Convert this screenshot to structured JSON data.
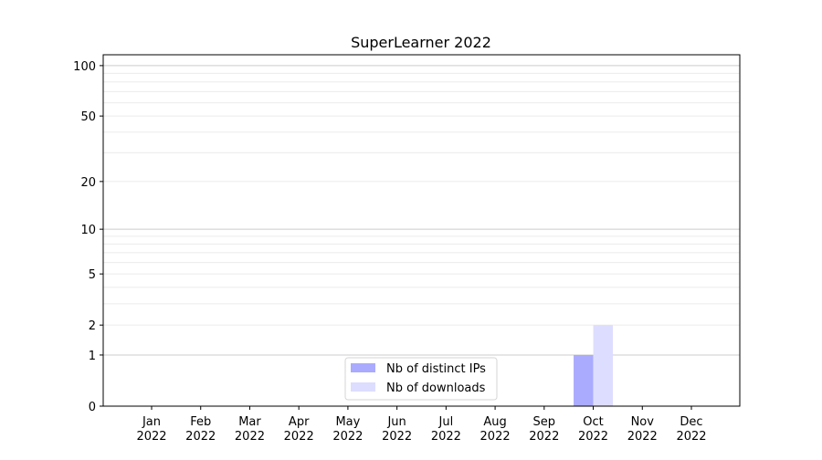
{
  "chart_data": {
    "type": "bar",
    "title": "SuperLearner 2022",
    "xlabel": "",
    "ylabel": "",
    "y_scale": "log(1+y)",
    "ylim": [
      0,
      116
    ],
    "grid": true,
    "legend_position": "lower-center",
    "y_ticks": [
      0,
      1,
      2,
      5,
      10,
      20,
      50,
      100
    ],
    "y_major_grid": [
      1,
      10,
      100
    ],
    "y_minor_grid": [
      2,
      3,
      4,
      5,
      6,
      7,
      8,
      9,
      20,
      30,
      40,
      50,
      60,
      70,
      80,
      90
    ],
    "categories": [
      "Jan\n2022",
      "Feb\n2022",
      "Mar\n2022",
      "Apr\n2022",
      "May\n2022",
      "Jun\n2022",
      "Jul\n2022",
      "Aug\n2022",
      "Sep\n2022",
      "Oct\n2022",
      "Nov\n2022",
      "Dec\n2022"
    ],
    "series": [
      {
        "name": "Nb of distinct IPs",
        "color": "#aaaaff",
        "values": [
          0,
          0,
          0,
          0,
          0,
          0,
          0,
          0,
          0,
          1,
          0,
          0
        ]
      },
      {
        "name": "Nb of downloads",
        "color": "#ddddff",
        "values": [
          0,
          0,
          0,
          0,
          0,
          0,
          0,
          0,
          0,
          2,
          0,
          0
        ]
      }
    ]
  }
}
